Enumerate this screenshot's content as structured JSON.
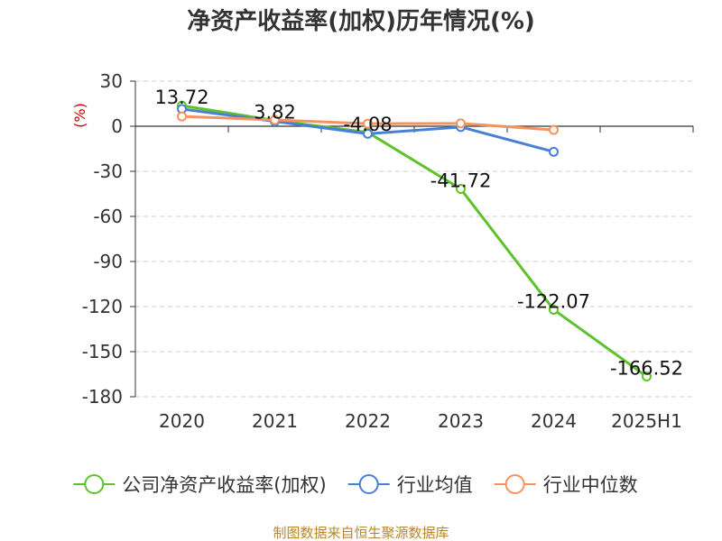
{
  "chart_data": {
    "type": "line",
    "title": "净资产收益率(加权)历年情况(%)",
    "ylabel": "(%)",
    "categories": [
      "2020",
      "2021",
      "2022",
      "2023",
      "2024",
      "2025H1"
    ],
    "ylim": [
      -180,
      30
    ],
    "yticks": [
      30,
      0,
      -30,
      -60,
      -90,
      -120,
      -150,
      -180
    ],
    "grid": "horizontal-dashed",
    "legend_position": "bottom",
    "series": [
      {
        "name": "公司净资产收益率(加权)",
        "color": "#5ec22a",
        "values": [
          13.72,
          3.82,
          -4.08,
          -41.72,
          -122.07,
          -166.52
        ],
        "labels": [
          "13.72",
          "3.82",
          "-4.08",
          "-41.72",
          "-122.07",
          "-166.52"
        ]
      },
      {
        "name": "行业均值",
        "color": "#4a7fd8",
        "values": [
          11.5,
          3.2,
          -5.0,
          -0.5,
          -17.0,
          null
        ]
      },
      {
        "name": "行业中位数",
        "color": "#f3935f",
        "values": [
          6.5,
          4.2,
          1.7,
          1.9,
          -2.5,
          null
        ]
      }
    ],
    "source": "制图数据来自恒生聚源数据库"
  }
}
